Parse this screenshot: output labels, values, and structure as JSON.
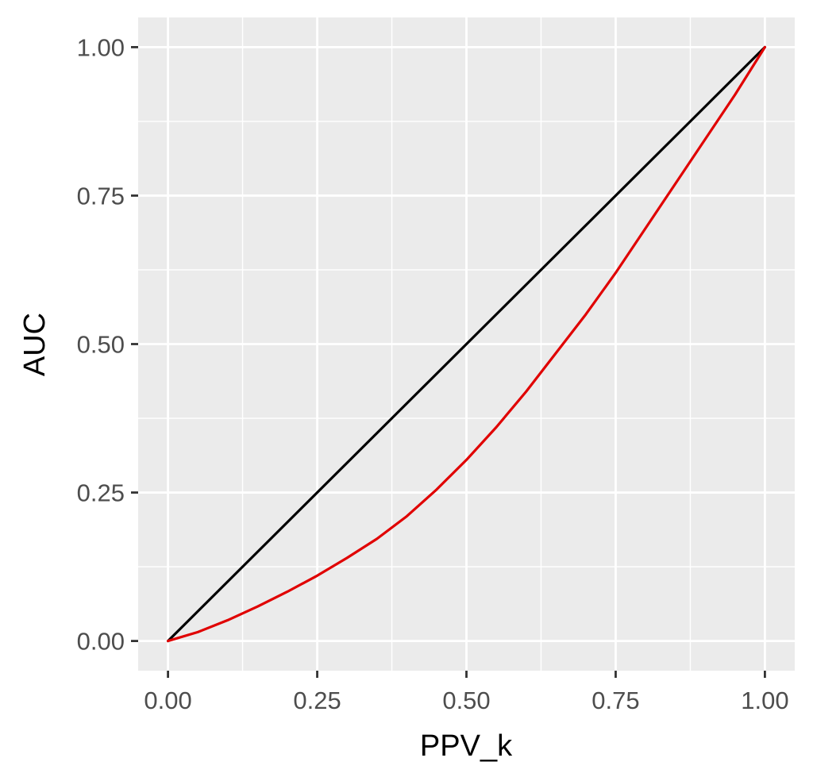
{
  "chart_data": {
    "type": "line",
    "xlabel": "PPV_k",
    "ylabel": "AUC",
    "xlim": [
      -0.05,
      1.05
    ],
    "ylim": [
      -0.05,
      1.05
    ],
    "x_ticks": [
      0,
      0.25,
      0.5,
      0.75,
      1
    ],
    "x_tick_labels": [
      "0.00",
      "0.25",
      "0.50",
      "0.75",
      "1.00"
    ],
    "y_ticks": [
      0,
      0.25,
      0.5,
      0.75,
      1
    ],
    "y_tick_labels": [
      "0.00",
      "0.25",
      "0.50",
      "0.75",
      "1.00"
    ],
    "grid": true,
    "panel_background": "#ebebeb",
    "grid_color": "#ffffff",
    "series": [
      {
        "color": "#000000",
        "x": [
          0,
          1
        ],
        "y": [
          0,
          1
        ]
      },
      {
        "color": "#e00000",
        "x": [
          0,
          0.05,
          0.1,
          0.15,
          0.2,
          0.25,
          0.3,
          0.35,
          0.4,
          0.45,
          0.5,
          0.55,
          0.6,
          0.65,
          0.7,
          0.75,
          0.8,
          0.85,
          0.9,
          0.95,
          1
        ],
        "y": [
          0,
          0.015,
          0.035,
          0.058,
          0.083,
          0.11,
          0.14,
          0.172,
          0.21,
          0.255,
          0.305,
          0.36,
          0.42,
          0.485,
          0.55,
          0.62,
          0.695,
          0.77,
          0.845,
          0.92,
          1
        ]
      }
    ]
  }
}
